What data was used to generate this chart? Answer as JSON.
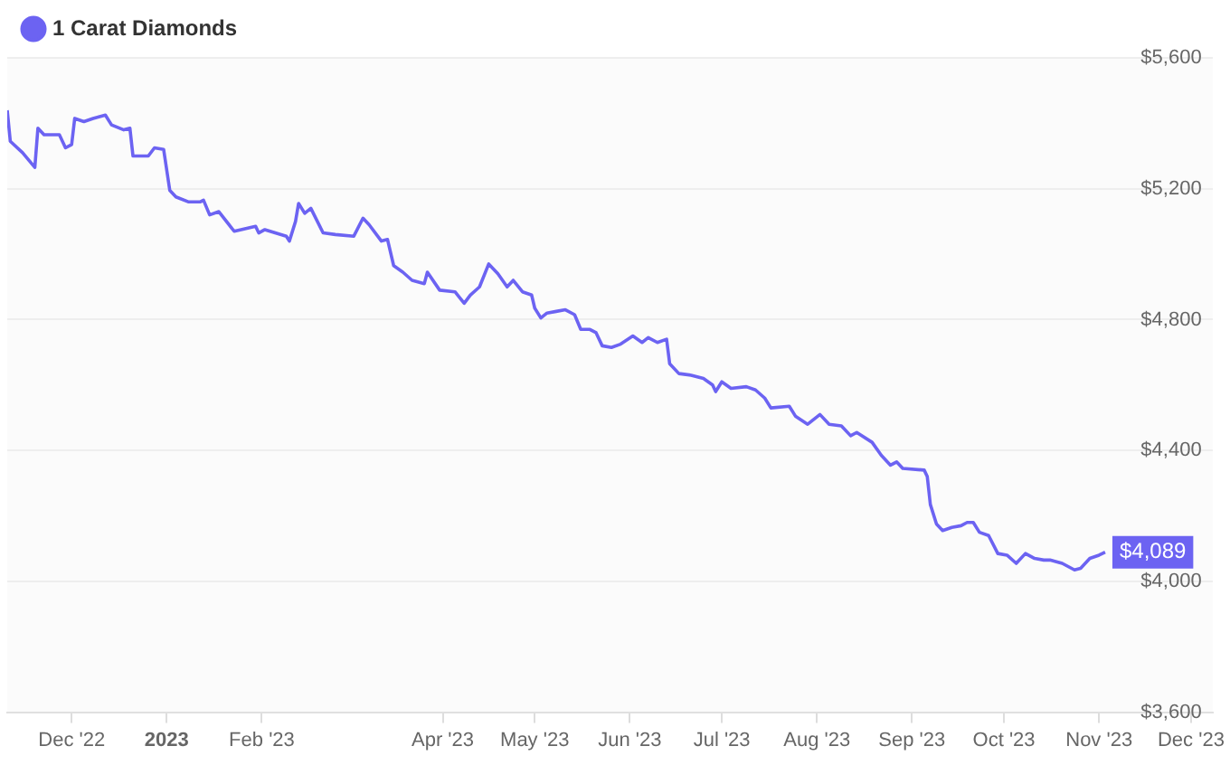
{
  "chart_data": {
    "type": "line",
    "legend": "top left",
    "grid": "y",
    "marker": "none",
    "line_style": "solid",
    "xlim": [
      "2022-11-10",
      "2023-12-08"
    ],
    "xticks": [
      {
        "value": "2022-12-01",
        "label": "Dec '22"
      },
      {
        "value": "2023-01-01",
        "label": "2023"
      },
      {
        "value": "2023-02-01",
        "label": "Feb '23"
      },
      {
        "value": "2023-04-01",
        "label": "Apr '23"
      },
      {
        "value": "2023-05-01",
        "label": "May '23"
      },
      {
        "value": "2023-06-01",
        "label": "Jun '23"
      },
      {
        "value": "2023-07-01",
        "label": "Jul '23"
      },
      {
        "value": "2023-08-01",
        "label": "Aug '23"
      },
      {
        "value": "2023-09-01",
        "label": "Sep '23"
      },
      {
        "value": "2023-10-01",
        "label": "Oct '23"
      },
      {
        "value": "2023-11-01",
        "label": "Nov '23"
      },
      {
        "value": "2023-12-01",
        "label": "Dec '23"
      }
    ],
    "ylim": [
      3600,
      5600
    ],
    "yticks": [
      {
        "value": 3600,
        "label": "$3,600"
      },
      {
        "value": 4000,
        "label": "$4,000"
      },
      {
        "value": 4400,
        "label": "$4,400"
      },
      {
        "value": 4800,
        "label": "$4,800"
      },
      {
        "value": 5200,
        "label": "$5,200"
      },
      {
        "value": 5600,
        "label": "$5,600"
      }
    ],
    "x": [
      "2022-11-10",
      "2022-11-11",
      "2022-11-15",
      "2022-11-19",
      "2022-11-20",
      "2022-11-22",
      "2022-11-27",
      "2022-11-29",
      "2022-12-01",
      "2022-12-02",
      "2022-12-05",
      "2022-12-08",
      "2022-12-12",
      "2022-12-14",
      "2022-12-18",
      "2022-12-20",
      "2022-12-21",
      "2022-12-26",
      "2022-12-28",
      "2022-12-31",
      "2023-01-02",
      "2023-01-04",
      "2023-01-08",
      "2023-01-12",
      "2023-01-13",
      "2023-01-15",
      "2023-01-18",
      "2023-01-23",
      "2023-01-30",
      "2023-01-31",
      "2023-02-02",
      "2023-02-09",
      "2023-02-10",
      "2023-02-12",
      "2023-02-13",
      "2023-02-15",
      "2023-02-17",
      "2023-02-21",
      "2023-02-25",
      "2023-03-03",
      "2023-03-06",
      "2023-03-08",
      "2023-03-12",
      "2023-03-14",
      "2023-03-16",
      "2023-03-19",
      "2023-03-22",
      "2023-03-26",
      "2023-03-27",
      "2023-03-31",
      "2023-04-05",
      "2023-04-08",
      "2023-04-10",
      "2023-04-13",
      "2023-04-16",
      "2023-04-19",
      "2023-04-22",
      "2023-04-24",
      "2023-04-27",
      "2023-04-30",
      "2023-05-01",
      "2023-05-03",
      "2023-05-05",
      "2023-05-08",
      "2023-05-11",
      "2023-05-14",
      "2023-05-16",
      "2023-05-19",
      "2023-05-21",
      "2023-05-23",
      "2023-05-26",
      "2023-05-29",
      "2023-06-02",
      "2023-06-05",
      "2023-06-07",
      "2023-06-10",
      "2023-06-13",
      "2023-06-14",
      "2023-06-17",
      "2023-06-21",
      "2023-06-25",
      "2023-06-28",
      "2023-06-29",
      "2023-07-01",
      "2023-07-04",
      "2023-07-09",
      "2023-07-12",
      "2023-07-15",
      "2023-07-17",
      "2023-07-23",
      "2023-07-25",
      "2023-07-29",
      "2023-08-02",
      "2023-08-05",
      "2023-08-09",
      "2023-08-12",
      "2023-08-14",
      "2023-08-19",
      "2023-08-22",
      "2023-08-25",
      "2023-08-27",
      "2023-08-29",
      "2023-09-05",
      "2023-09-06",
      "2023-09-07",
      "2023-09-09",
      "2023-09-11",
      "2023-09-14",
      "2023-09-17",
      "2023-09-19",
      "2023-09-21",
      "2023-09-23",
      "2023-09-26",
      "2023-09-29",
      "2023-10-02",
      "2023-10-05",
      "2023-10-08",
      "2023-10-11",
      "2023-10-14",
      "2023-10-16",
      "2023-10-20",
      "2023-10-24",
      "2023-10-26",
      "2023-10-29",
      "2023-11-01",
      "2023-11-03"
    ],
    "series": [
      {
        "name": "1 Carat Diamonds",
        "color": "#6c63f2",
        "values": [
          5440,
          5345,
          5310,
          5265,
          5385,
          5365,
          5365,
          5325,
          5335,
          5415,
          5405,
          5415,
          5425,
          5395,
          5380,
          5385,
          5300,
          5300,
          5325,
          5320,
          5195,
          5175,
          5160,
          5160,
          5165,
          5120,
          5130,
          5070,
          5085,
          5065,
          5075,
          5055,
          5040,
          5100,
          5155,
          5125,
          5140,
          5065,
          5060,
          5055,
          5110,
          5090,
          5040,
          5045,
          4965,
          4945,
          4920,
          4910,
          4945,
          4890,
          4885,
          4850,
          4875,
          4900,
          4970,
          4940,
          4900,
          4920,
          4885,
          4875,
          4835,
          4805,
          4820,
          4825,
          4830,
          4815,
          4770,
          4770,
          4760,
          4720,
          4715,
          4725,
          4750,
          4730,
          4745,
          4730,
          4740,
          4665,
          4635,
          4630,
          4620,
          4600,
          4580,
          4610,
          4590,
          4595,
          4585,
          4560,
          4530,
          4535,
          4505,
          4480,
          4510,
          4480,
          4475,
          4445,
          4455,
          4425,
          4385,
          4355,
          4365,
          4345,
          4340,
          4320,
          4235,
          4175,
          4155,
          4165,
          4170,
          4180,
          4180,
          4150,
          4140,
          4085,
          4080,
          4055,
          4085,
          4070,
          4065,
          4065,
          4055,
          4035,
          4040,
          4070,
          4080,
          4089
        ],
        "value_labels": [
          null,
          null,
          null,
          null,
          null,
          null,
          null,
          null,
          null,
          null,
          null,
          null,
          null,
          null,
          null,
          null,
          null,
          null,
          null,
          null,
          null,
          null,
          null,
          null,
          null,
          null,
          null,
          null,
          null,
          null,
          null,
          null,
          null,
          null,
          null,
          null,
          null,
          null,
          null,
          null,
          null,
          null,
          null,
          null,
          null,
          null,
          null,
          null,
          null,
          null,
          null,
          null,
          null,
          null,
          null,
          null,
          null,
          null,
          null,
          null,
          null,
          null,
          null,
          null,
          null,
          null,
          null,
          null,
          null,
          null,
          null,
          null,
          null,
          null,
          null,
          null,
          null,
          null,
          null,
          null,
          null,
          null,
          null,
          null,
          null,
          null,
          null,
          null,
          null,
          null,
          null,
          null,
          null,
          null,
          null,
          null,
          null,
          null,
          null,
          null,
          null,
          null,
          null,
          null,
          null,
          null,
          null,
          null,
          null,
          null,
          null,
          null,
          null,
          null,
          null,
          null,
          null,
          null,
          null,
          null,
          null,
          null,
          null,
          null,
          null,
          "$4,089"
        ]
      }
    ]
  }
}
